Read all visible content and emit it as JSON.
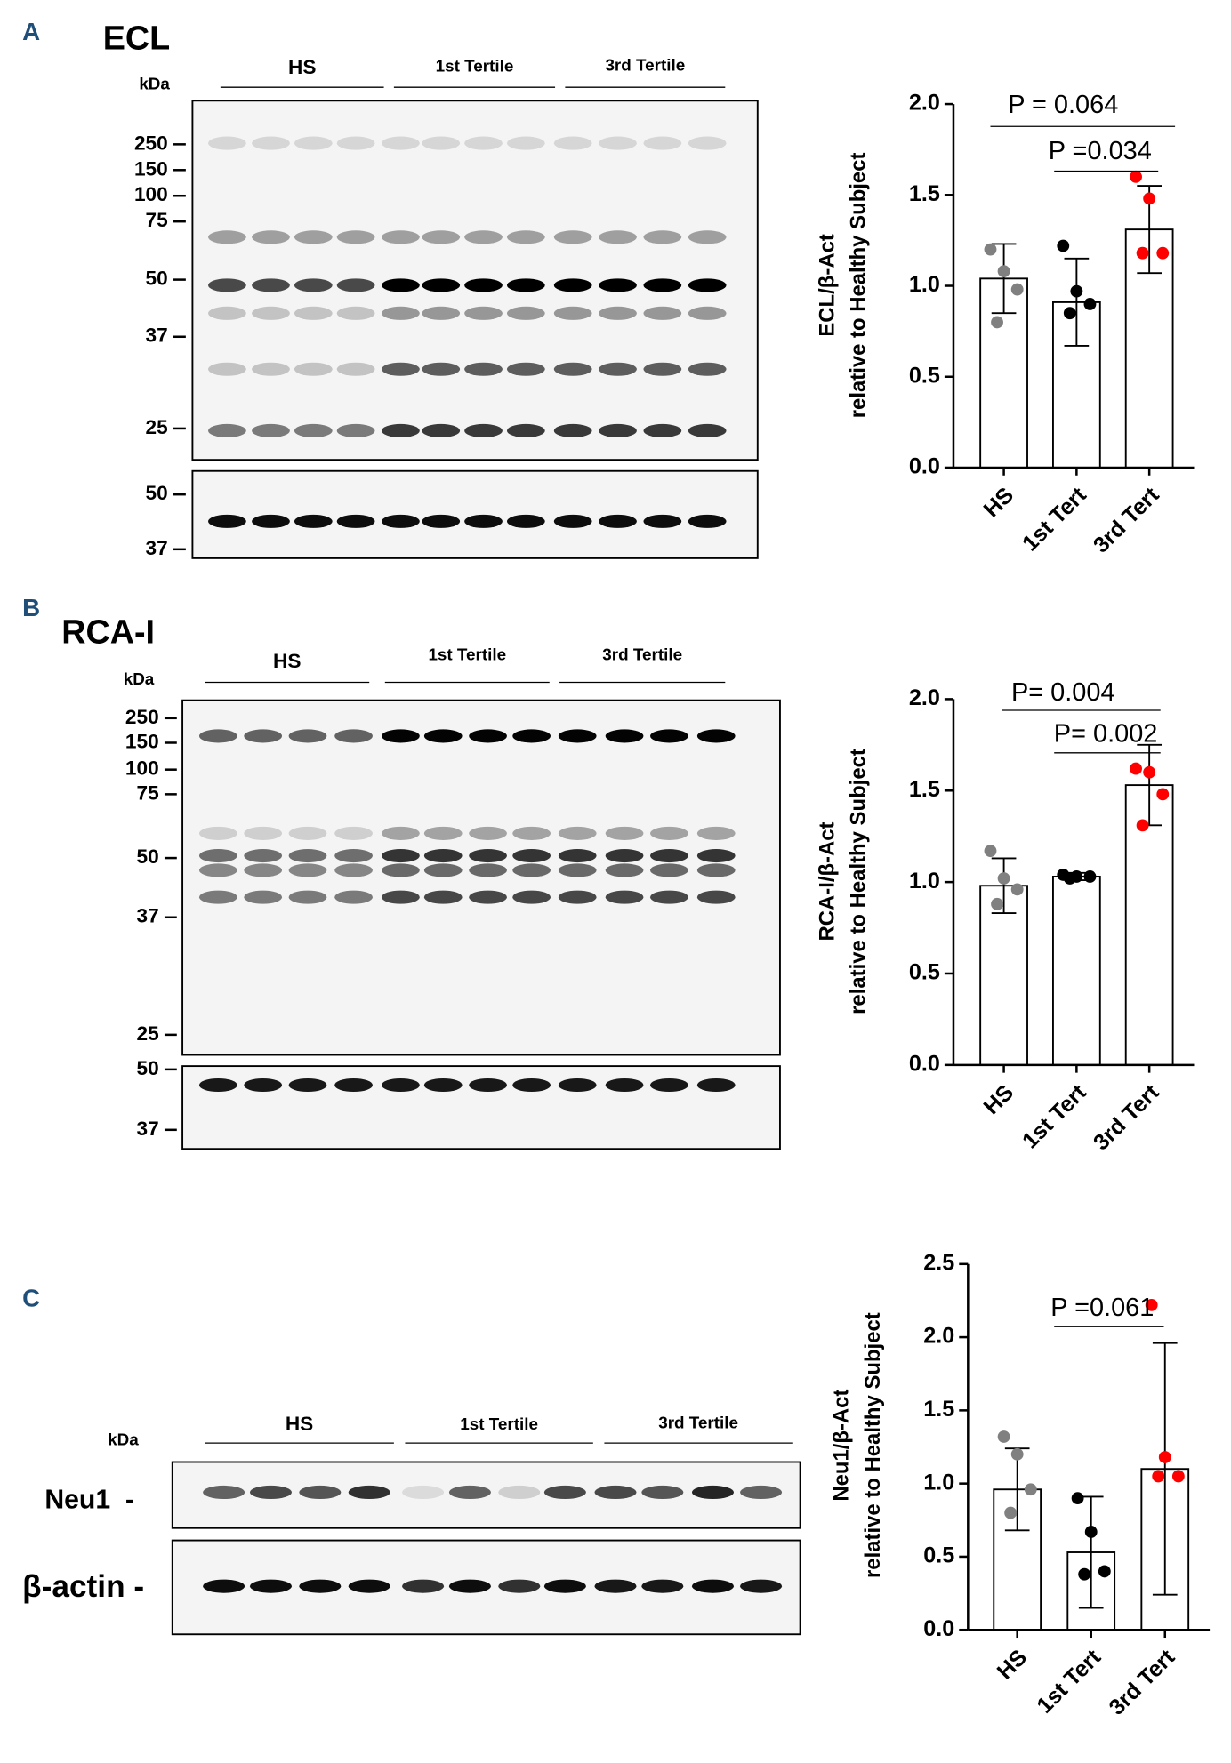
{
  "chart_data": [
    {
      "type": "bar",
      "ylabel": [
        "ECL/β-Act",
        "relative to Healthy  Subject"
      ],
      "categories": [
        "HS",
        "1st Tert",
        "3rd Tert"
      ],
      "values": [
        1.04,
        0.91,
        1.31
      ],
      "errors": [
        0.19,
        0.24,
        0.24
      ],
      "points": [
        [
          1.2,
          1.08,
          0.98,
          0.8
        ],
        [
          1.22,
          0.97,
          0.9,
          0.85
        ],
        [
          1.6,
          1.48,
          1.18,
          1.18
        ]
      ],
      "point_colors": [
        "#808080",
        "#000000",
        "#ff0000"
      ],
      "color": "#ffffff",
      "ylim": [
        0,
        2
      ],
      "yticks": [
        {
          "value": 0,
          "label": "0.0"
        },
        {
          "value": 0.5,
          "label": "0.5"
        },
        {
          "value": 1,
          "label": "1.0"
        },
        {
          "value": 1.5,
          "label": "1.5"
        },
        {
          "value": 2,
          "label": "2.0"
        }
      ],
      "annotations": [
        "P = 0.064",
        "P =0.034"
      ]
    },
    {
      "type": "bar",
      "ylabel": [
        "RCA-I/β-Act",
        "relative to Healthy  Subject"
      ],
      "categories": [
        "HS",
        "1st Tert",
        "3rd Tert"
      ],
      "values": [
        0.98,
        1.03,
        1.53
      ],
      "errors": [
        0.15,
        0.02,
        0.22
      ],
      "points": [
        [
          1.17,
          1.02,
          0.96,
          0.88
        ],
        [
          1.04,
          1.03,
          1.03,
          1.02
        ],
        [
          1.62,
          1.6,
          1.48,
          1.31
        ]
      ],
      "point_colors": [
        "#808080",
        "#000000",
        "#ff0000"
      ],
      "color": "#ffffff",
      "ylim": [
        0,
        2
      ],
      "yticks": [
        {
          "value": 0,
          "label": "0.0"
        },
        {
          "value": 0.5,
          "label": "0.5"
        },
        {
          "value": 1,
          "label": "1.0"
        },
        {
          "value": 1.5,
          "label": "1.5"
        },
        {
          "value": 2,
          "label": "2.0"
        }
      ],
      "annotations": [
        "P= 0.004",
        "P= 0.002"
      ]
    },
    {
      "type": "bar",
      "ylabel": [
        "Neu1/β-Act",
        "relative to Healthy Subject"
      ],
      "categories": [
        "HS",
        "1st Tert",
        "3rd Tert"
      ],
      "values": [
        0.96,
        0.53,
        1.1
      ],
      "errors": [
        0.28,
        0.38,
        0.86
      ],
      "points": [
        [
          1.32,
          1.2,
          0.96,
          0.8
        ],
        [
          0.9,
          0.67,
          0.4,
          0.38
        ],
        [
          2.22,
          1.18,
          1.05,
          1.05
        ]
      ],
      "point_colors": [
        "#808080",
        "#000000",
        "#ff0000"
      ],
      "color": "#ffffff",
      "ylim": [
        0,
        2.5
      ],
      "yticks": [
        {
          "value": 0,
          "label": "0.0"
        },
        {
          "value": 0.5,
          "label": "0.5"
        },
        {
          "value": 1,
          "label": "1.0"
        },
        {
          "value": 1.5,
          "label": "1.5"
        },
        {
          "value": 2,
          "label": "2.0"
        },
        {
          "value": 2.5,
          "label": "2.5"
        }
      ],
      "annotations": [
        "P =0.061"
      ]
    }
  ],
  "blots": [
    {
      "panel": "A",
      "title": "ECL",
      "unit": "kDa",
      "groups": [
        "HS",
        "1st Tertile",
        "3rd Tertile"
      ],
      "markers": [
        "250",
        "150",
        "100",
        "75",
        "50",
        "37",
        "25"
      ],
      "loading_markers": [
        "50",
        "37"
      ]
    },
    {
      "panel": "B",
      "title": "RCA-I",
      "unit": "kDa",
      "groups": [
        "HS",
        "1st Tertile",
        "3rd Tertile"
      ],
      "markers": [
        "250",
        "150",
        "100",
        "75",
        "50",
        "37",
        "25"
      ],
      "loading_markers": [
        "50",
        "37"
      ]
    },
    {
      "panel": "C",
      "unit": "kDa",
      "groups": [
        "HS",
        "1st Tertile",
        "3rd Tertile"
      ],
      "rows": [
        "Neu1  -",
        "β-actin -"
      ]
    }
  ]
}
